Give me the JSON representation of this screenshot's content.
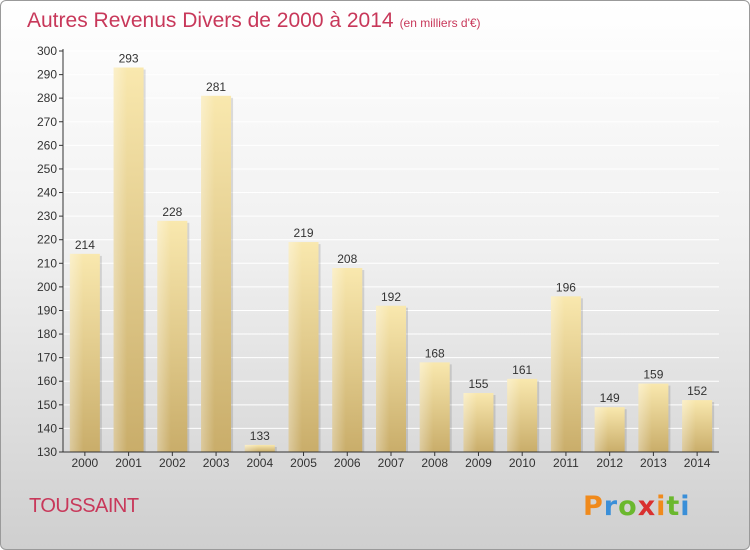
{
  "header": {
    "title": "Autres Revenus Divers de 2000 à 2014",
    "subtitle": "(en milliers d'€)"
  },
  "footer": {
    "commune": "TOUSSAINT",
    "logo": "Proxiti"
  },
  "colors": {
    "title": "#c8385a",
    "bar_light": "#f7e3a6",
    "bar_dark": "#c9ad6a",
    "axis": "#333333"
  },
  "chart_data": {
    "type": "bar",
    "categories": [
      "2000",
      "2001",
      "2002",
      "2003",
      "2004",
      "2005",
      "2006",
      "2007",
      "2008",
      "2009",
      "2010",
      "2011",
      "2012",
      "2013",
      "2014"
    ],
    "values": [
      214,
      293,
      228,
      281,
      133,
      219,
      208,
      192,
      168,
      155,
      161,
      196,
      149,
      159,
      152
    ],
    "title": "Autres Revenus Divers de 2000 à 2014",
    "subtitle": "(en milliers d'€)",
    "xlabel": "",
    "ylabel": "",
    "ylim": [
      130,
      300
    ],
    "yticks": [
      130,
      140,
      150,
      160,
      170,
      180,
      190,
      200,
      210,
      220,
      230,
      240,
      250,
      260,
      270,
      280,
      290,
      300
    ],
    "grid": true,
    "data_labels": true,
    "legend": "none"
  }
}
